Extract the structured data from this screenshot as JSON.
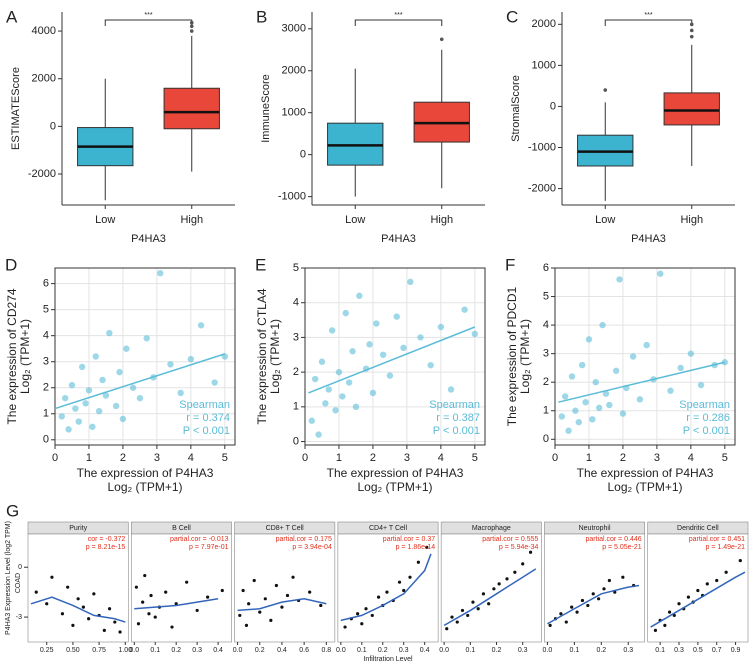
{
  "chart_data": [
    {
      "type": "box",
      "panel": "A",
      "ylabel": "ESTIMATEScore",
      "xlabel": "P4HA3",
      "annotation": "***",
      "categories": [
        "Low",
        "High"
      ],
      "colors": [
        "#3cb4d0",
        "#e8473a"
      ],
      "ylim": [
        -3300,
        4800
      ],
      "yticks": [
        -2000,
        0,
        2000,
        4000
      ],
      "boxes": [
        {
          "min": -3100,
          "q1": -1650,
          "median": -850,
          "q3": -50,
          "max": 2000,
          "outliers": []
        },
        {
          "min": -1900,
          "q1": -100,
          "median": 600,
          "q3": 1600,
          "max": 3800,
          "outliers": [
            4000,
            4200,
            4350
          ]
        }
      ]
    },
    {
      "type": "box",
      "panel": "B",
      "ylabel": "ImmuneScore",
      "xlabel": "P4HA3",
      "annotation": "***",
      "categories": [
        "Low",
        "High"
      ],
      "colors": [
        "#3cb4d0",
        "#e8473a"
      ],
      "ylim": [
        -1200,
        3400
      ],
      "yticks": [
        -1000,
        0,
        1000,
        2000,
        3000
      ],
      "boxes": [
        {
          "min": -1000,
          "q1": -250,
          "median": 220,
          "q3": 750,
          "max": 2050,
          "outliers": []
        },
        {
          "min": -800,
          "q1": 300,
          "median": 750,
          "q3": 1250,
          "max": 2500,
          "outliers": [
            2750
          ]
        }
      ]
    },
    {
      "type": "box",
      "panel": "C",
      "ylabel": "StromalScore",
      "xlabel": "P4HA3",
      "annotation": "***",
      "categories": [
        "Low",
        "High"
      ],
      "colors": [
        "#3cb4d0",
        "#e8473a"
      ],
      "ylim": [
        -2400,
        2300
      ],
      "yticks": [
        -2000,
        -1000,
        0,
        1000,
        2000
      ],
      "boxes": [
        {
          "min": -2300,
          "q1": -1450,
          "median": -1100,
          "q3": -700,
          "max": 100,
          "outliers": [
            400
          ]
        },
        {
          "min": -1450,
          "q1": -450,
          "median": -100,
          "q3": 330,
          "max": 1500,
          "outliers": [
            1700,
            1850,
            2000
          ]
        }
      ]
    },
    {
      "type": "scatter",
      "panel": "D",
      "ylabel": [
        "The expression of CD274",
        "Log₂ (TPM+1)"
      ],
      "xlabel": [
        "The expression of P4HA3",
        "Log₂ (TPM+1)"
      ],
      "annotations": [
        "Spearman",
        "r = 0.374",
        "P < 0.001"
      ],
      "color": "#5bbcd8",
      "grid": true,
      "xlim": [
        0,
        5.3
      ],
      "xticks": [
        0,
        1,
        2,
        3,
        4,
        5
      ],
      "ylim": [
        -0.2,
        6.6
      ],
      "yticks": [
        0,
        1,
        2,
        3,
        4,
        5,
        6
      ],
      "x": [
        0.2,
        0.3,
        0.4,
        0.5,
        0.6,
        0.7,
        0.8,
        0.9,
        1.0,
        1.1,
        1.2,
        1.3,
        1.4,
        1.5,
        1.6,
        1.8,
        1.9,
        2.0,
        2.1,
        2.3,
        2.5,
        2.7,
        2.9,
        3.1,
        3.4,
        3.7,
        4.0,
        4.3,
        4.7,
        5.0
      ],
      "y": [
        0.9,
        1.6,
        0.4,
        2.1,
        1.2,
        0.7,
        2.8,
        1.4,
        1.9,
        0.5,
        3.2,
        1.1,
        2.3,
        1.7,
        4.1,
        1.3,
        2.6,
        0.8,
        3.5,
        2.0,
        1.6,
        3.9,
        2.4,
        6.4,
        2.9,
        1.8,
        3.1,
        4.4,
        2.2,
        3.2
      ],
      "fit": {
        "x": [
          0,
          5
        ],
        "y": [
          1.2,
          3.3
        ]
      }
    },
    {
      "type": "scatter",
      "panel": "E",
      "ylabel": [
        "The expression of CTLA4",
        "Log₂ (TPM+1)"
      ],
      "xlabel": [
        "The expression of P4HA3",
        "Log₂ (TPM+1)"
      ],
      "annotations": [
        "Spearman",
        "r = 0.387",
        "P < 0.001"
      ],
      "color": "#5bbcd8",
      "grid": true,
      "xlim": [
        0,
        5.3
      ],
      "xticks": [
        0,
        1,
        2,
        3,
        4,
        5
      ],
      "ylim": [
        -0.1,
        5
      ],
      "yticks": [
        0,
        1,
        2,
        3,
        4,
        5
      ],
      "x": [
        0.2,
        0.3,
        0.4,
        0.5,
        0.6,
        0.7,
        0.8,
        0.9,
        1.0,
        1.1,
        1.2,
        1.3,
        1.4,
        1.5,
        1.6,
        1.8,
        1.9,
        2.0,
        2.1,
        2.3,
        2.5,
        2.7,
        2.9,
        3.1,
        3.4,
        3.7,
        4.0,
        4.3,
        4.7,
        5.0
      ],
      "y": [
        0.6,
        1.8,
        0.2,
        2.3,
        1.1,
        1.5,
        3.2,
        0.9,
        2.0,
        1.3,
        3.7,
        1.7,
        2.6,
        1.0,
        4.2,
        2.1,
        2.8,
        1.4,
        3.4,
        2.5,
        1.9,
        3.6,
        2.7,
        4.6,
        3.0,
        2.2,
        3.3,
        1.5,
        3.8,
        3.1
      ],
      "fit": {
        "x": [
          0.1,
          5
        ],
        "y": [
          1.4,
          3.3
        ]
      }
    },
    {
      "type": "scatter",
      "panel": "F",
      "ylabel": [
        "The expression of PDCD1",
        "Log₂ (TPM+1)"
      ],
      "xlabel": [
        "The expression of P4HA3",
        "Log₂ (TPM+1)"
      ],
      "annotations": [
        "Spearman",
        "r = 0.286",
        "P < 0.001"
      ],
      "color": "#5bbcd8",
      "grid": true,
      "xlim": [
        0,
        5.3
      ],
      "xticks": [
        0,
        1,
        2,
        3,
        4,
        5
      ],
      "ylim": [
        -0.2,
        6
      ],
      "yticks": [
        0,
        1,
        2,
        3,
        4,
        5,
        6
      ],
      "x": [
        0.2,
        0.3,
        0.4,
        0.5,
        0.6,
        0.7,
        0.8,
        0.9,
        1.0,
        1.1,
        1.2,
        1.3,
        1.4,
        1.5,
        1.6,
        1.8,
        1.9,
        2.0,
        2.1,
        2.3,
        2.5,
        2.7,
        2.9,
        3.1,
        3.4,
        3.7,
        4.0,
        4.3,
        4.7,
        5.0
      ],
      "y": [
        0.8,
        1.5,
        0.3,
        2.2,
        1.0,
        0.6,
        2.6,
        1.3,
        3.5,
        0.7,
        2.0,
        1.1,
        4.0,
        1.6,
        1.2,
        2.4,
        5.6,
        0.9,
        1.8,
        2.9,
        1.4,
        3.3,
        2.1,
        5.8,
        1.7,
        2.5,
        3.0,
        1.9,
        2.6,
        2.7
      ],
      "fit": {
        "x": [
          0.1,
          5
        ],
        "y": [
          1.3,
          2.7
        ]
      }
    },
    {
      "type": "panels",
      "panel": "G",
      "ylabel": "P4HA3 Expression Level (log2 TPM)",
      "group": "COAD",
      "xlabel": "Infiltration Level",
      "ylim": [
        -4.5,
        2
      ],
      "yticks": [
        -3,
        0
      ],
      "color": "#111",
      "fitcolor": "#3366bb",
      "statcolor": "#e0301e",
      "panels": [
        {
          "name": "Purity",
          "stats": [
            "cor = -0.372",
            "p = 8.21e-15"
          ],
          "xlim": [
            0.1,
            1.0
          ],
          "xticks": [
            0.25,
            {
              "value": 0.5,
              "label": "0.50"
            },
            0.75,
            {
              "value": 1,
              "label": "1.00"
            }
          ],
          "x": [
            0.15,
            0.25,
            0.3,
            0.4,
            0.45,
            0.5,
            0.55,
            0.6,
            0.65,
            0.7,
            0.75,
            0.8,
            0.85,
            0.9,
            0.95
          ],
          "y": [
            -1.5,
            -2.2,
            -0.6,
            -2.8,
            -1.2,
            -3.5,
            -1.9,
            -2.4,
            -3.1,
            -1.6,
            -2.9,
            -3.8,
            -2.5,
            -3.3,
            -3.9
          ],
          "fit": {
            "x": [
              0.1,
              0.3,
              0.5,
              0.7,
              0.9,
              1.0
            ],
            "y": [
              -2.2,
              -1.8,
              -2.3,
              -2.9,
              -3.1,
              -3.3
            ]
          }
        },
        {
          "name": "B Cell",
          "stats": [
            "partial.cor = -0.013",
            "p = 7.97e-01"
          ],
          "xlim": [
            0,
            0.45
          ],
          "xticks": [
            {
              "value": 0,
              "label": "0.0"
            },
            0.1,
            0.2,
            0.3,
            0.4
          ],
          "x": [
            0.01,
            0.02,
            0.04,
            0.05,
            0.07,
            0.08,
            0.1,
            0.12,
            0.15,
            0.18,
            0.2,
            0.25,
            0.3,
            0.35,
            0.42
          ],
          "y": [
            -1.2,
            -3.4,
            -2.1,
            -0.5,
            -2.8,
            -1.7,
            -3.0,
            -2.4,
            -1.5,
            -3.6,
            -2.2,
            -0.9,
            -2.6,
            -1.8,
            -1.4
          ],
          "fit": {
            "x": [
              0,
              0.1,
              0.2,
              0.3,
              0.4
            ],
            "y": [
              -2.5,
              -2.4,
              -2.3,
              -2.1,
              -1.9
            ]
          }
        },
        {
          "name": "CD8+ T Cell",
          "stats": [
            "partial.cor = 0.175",
            "p = 3.94e-04"
          ],
          "xlim": [
            0,
            0.85
          ],
          "xticks": [
            {
              "value": 0,
              "label": "0.0"
            },
            0.2,
            0.4,
            0.6,
            0.8
          ],
          "x": [
            0.02,
            0.05,
            0.08,
            0.1,
            0.15,
            0.2,
            0.25,
            0.3,
            0.35,
            0.4,
            0.45,
            0.5,
            0.55,
            0.65,
            0.75
          ],
          "y": [
            -2.9,
            -1.4,
            -3.5,
            -2.2,
            -0.8,
            -2.7,
            -1.9,
            -3.2,
            -1.1,
            -2.4,
            -1.7,
            -0.6,
            -2.0,
            -1.5,
            -2.3
          ],
          "fit": {
            "x": [
              0,
              0.2,
              0.4,
              0.6,
              0.8
            ],
            "y": [
              -2.6,
              -2.5,
              -2.1,
              -1.9,
              -2.2
            ]
          }
        },
        {
          "name": "CD4+ T Cell",
          "stats": [
            "partial.cor = 0.37",
            "p = 1.86e-14"
          ],
          "xlim": [
            0,
            0.45
          ],
          "xticks": [
            {
              "value": 0,
              "label": "0.0"
            },
            0.1,
            0.2,
            0.3,
            0.4
          ],
          "x": [
            0.02,
            0.05,
            0.08,
            0.1,
            0.12,
            0.15,
            0.18,
            0.2,
            0.22,
            0.25,
            0.28,
            0.3,
            0.33,
            0.37,
            0.41
          ],
          "y": [
            -3.6,
            -3.1,
            -2.8,
            -3.4,
            -2.5,
            -2.9,
            -1.8,
            -2.3,
            -1.5,
            -2.0,
            -0.9,
            -1.4,
            -0.6,
            0.3,
            1.2
          ],
          "fit": {
            "x": [
              0,
              0.1,
              0.2,
              0.3,
              0.4,
              0.43
            ],
            "y": [
              -3.2,
              -2.9,
              -2.3,
              -1.6,
              -0.2,
              0.8
            ]
          }
        },
        {
          "name": "Macrophage",
          "stats": [
            "partial.cor = 0.555",
            "p = 5.94e-34"
          ],
          "xlim": [
            0,
            0.36
          ],
          "xticks": [
            {
              "value": 0,
              "label": "0.0"
            },
            0.1,
            0.2,
            0.3
          ],
          "x": [
            0.01,
            0.03,
            0.05,
            0.07,
            0.09,
            0.11,
            0.13,
            0.15,
            0.17,
            0.19,
            0.21,
            0.24,
            0.27,
            0.3,
            0.33
          ],
          "y": [
            -3.7,
            -3.0,
            -3.3,
            -2.6,
            -2.9,
            -2.1,
            -2.5,
            -1.6,
            -2.2,
            -1.3,
            -1.0,
            -0.7,
            -0.3,
            0.2,
            0.9
          ],
          "fit": {
            "x": [
              0,
              0.1,
              0.2,
              0.3,
              0.35
            ],
            "y": [
              -3.5,
              -2.6,
              -1.6,
              -0.6,
              -0.1
            ]
          }
        },
        {
          "name": "Neutrophil",
          "stats": [
            "partial.cor = 0.446",
            "p = 5.05e-21"
          ],
          "xlim": [
            0,
            0.35
          ],
          "xticks": [
            {
              "value": 0,
              "label": "0.0"
            },
            0.1,
            0.2,
            0.3
          ],
          "x": [
            0.01,
            0.03,
            0.05,
            0.07,
            0.09,
            0.11,
            0.13,
            0.15,
            0.17,
            0.19,
            0.21,
            0.23,
            0.25,
            0.28,
            0.32
          ],
          "y": [
            -3.5,
            -3.1,
            -2.8,
            -3.3,
            -2.4,
            -2.7,
            -2.0,
            -2.3,
            -1.6,
            -1.9,
            -1.3,
            -0.8,
            -1.5,
            -0.6,
            -1.1
          ],
          "fit": {
            "x": [
              0,
              0.1,
              0.2,
              0.3,
              0.34
            ],
            "y": [
              -3.4,
              -2.5,
              -1.6,
              -1.2,
              -1.1
            ]
          }
        },
        {
          "name": "Dendritic Cell",
          "stats": [
            "partial.cor = 0.451",
            "p = 1.49e-21"
          ],
          "xlim": [
            0,
            1.0
          ],
          "xticks": [
            0.1,
            0.3,
            0.5,
            0.7,
            0.9
          ],
          "x": [
            0.05,
            0.1,
            0.15,
            0.2,
            0.25,
            0.3,
            0.35,
            0.4,
            0.45,
            0.5,
            0.55,
            0.6,
            0.7,
            0.8,
            0.95
          ],
          "y": [
            -3.8,
            -3.2,
            -3.5,
            -2.7,
            -2.9,
            -2.2,
            -2.5,
            -1.8,
            -2.1,
            -1.4,
            -1.7,
            -1.0,
            -0.8,
            -0.3,
            0.4
          ],
          "fit": {
            "x": [
              0,
              0.3,
              0.6,
              0.9,
              1.0
            ],
            "y": [
              -3.6,
              -2.6,
              -1.6,
              -0.6,
              -0.3
            ]
          }
        }
      ]
    }
  ]
}
